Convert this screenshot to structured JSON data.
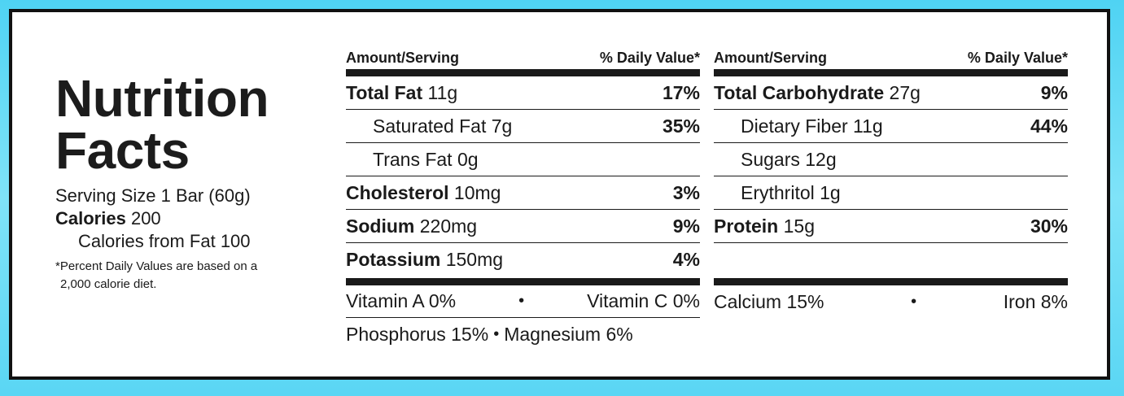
{
  "title": {
    "line1": "Nutrition",
    "line2": "Facts"
  },
  "serving_size": "Serving Size 1 Bar (60g)",
  "calories": {
    "label": "Calories",
    "value": "200"
  },
  "calories_from_fat": "Calories from Fat 100",
  "footnote": {
    "line1": "*Percent Daily Values are based on a",
    "line2": "2,000 calorie diet."
  },
  "header": {
    "amount": "Amount/Serving",
    "dv": "% Daily Value*"
  },
  "left_col": [
    {
      "name": "Total Fat",
      "amount": "11g",
      "pct": "17%",
      "bold": true,
      "indent": false
    },
    {
      "name": "Saturated Fat",
      "amount": "7g",
      "pct": "35%",
      "bold": false,
      "indent": true
    },
    {
      "name": "Trans Fat",
      "amount": "0g",
      "pct": "",
      "bold": false,
      "indent": true
    },
    {
      "name": "Cholesterol",
      "amount": "10mg",
      "pct": "3%",
      "bold": true,
      "indent": false
    },
    {
      "name": "Sodium",
      "amount": "220mg",
      "pct": "9%",
      "bold": true,
      "indent": false
    },
    {
      "name": "Potassium",
      "amount": "150mg",
      "pct": "4%",
      "bold": true,
      "indent": false
    }
  ],
  "right_col": [
    {
      "name": "Total Carbohydrate",
      "amount": "27g",
      "pct": "9%",
      "bold": true,
      "indent": false
    },
    {
      "name": "Dietary Fiber",
      "amount": "11g",
      "pct": "44%",
      "bold": false,
      "indent": true
    },
    {
      "name": "Sugars",
      "amount": "12g",
      "pct": "",
      "bold": false,
      "indent": true
    },
    {
      "name": "Erythritol",
      "amount": "1g",
      "pct": "",
      "bold": false,
      "indent": true
    },
    {
      "name": "Protein",
      "amount": "15g",
      "pct": "30%",
      "bold": true,
      "indent": false
    }
  ],
  "vitamins": {
    "vitamin_a": "Vitamin A 0%",
    "vitamin_c": "Vitamin C 0%",
    "phosphorus": "Phosphorus 15%",
    "magnesium": "Magnesium 6%",
    "calcium": "Calcium 15%",
    "iron": "Iron 8%",
    "bullet": "•"
  }
}
